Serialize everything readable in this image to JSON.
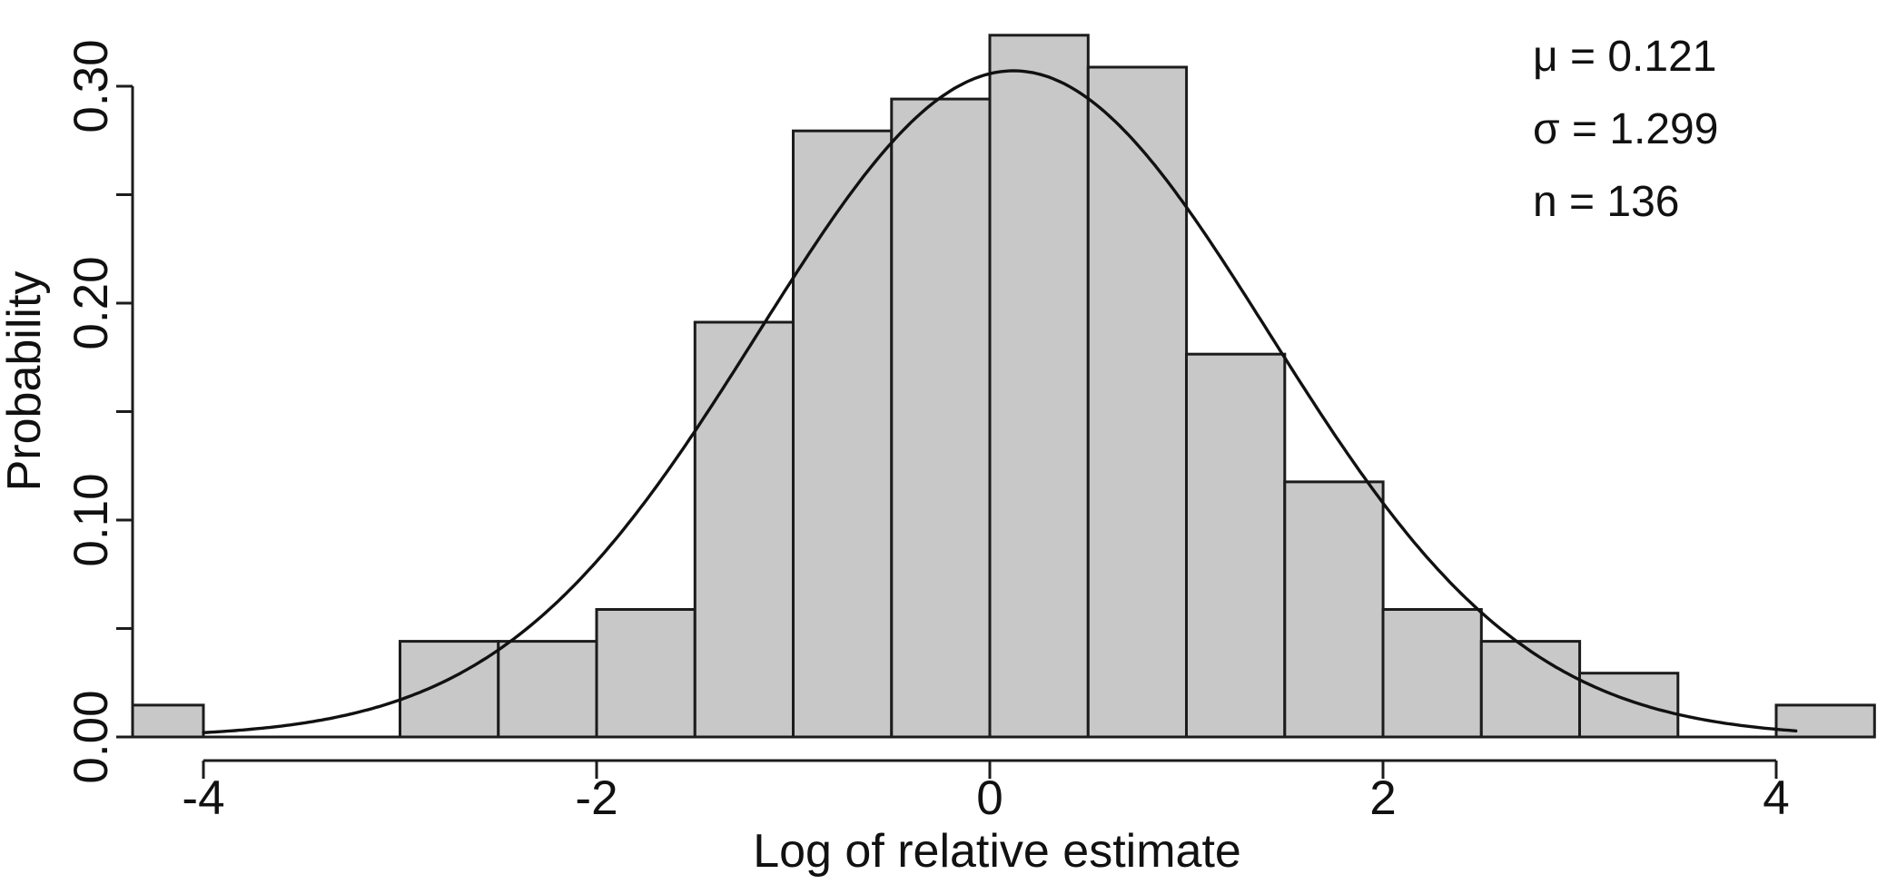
{
  "figure": {
    "stats": {
      "mu_label": "μ = 0.121",
      "sigma_label": "σ = 1.299",
      "n_label": "n = 136"
    }
  },
  "chart_data": {
    "type": "bar",
    "chart_kind": "histogram-with-normal-curve-overlay",
    "title": "",
    "xlabel": "Log of relative estimate",
    "ylabel": "Probability",
    "grid": false,
    "legend": null,
    "xlim": [
      -4.36,
      4.51
    ],
    "ylim": [
      0,
      0.325
    ],
    "bin_width": 0.5,
    "bin_edges": [
      -4.5,
      -4.0,
      -3.5,
      -3.0,
      -2.5,
      -2.0,
      -1.5,
      -1.0,
      -0.5,
      0.0,
      0.5,
      1.0,
      1.5,
      2.0,
      2.5,
      3.0,
      3.5,
      4.0,
      4.5
    ],
    "bar_counts": [
      1,
      0,
      0,
      3,
      3,
      4,
      13,
      19,
      20,
      22,
      21,
      12,
      8,
      4,
      3,
      2,
      0,
      1
    ],
    "bar_values": [
      0.0147,
      0,
      0,
      0.0441,
      0.0441,
      0.0588,
      0.1912,
      0.2794,
      0.2941,
      0.3235,
      0.3088,
      0.1765,
      0.1176,
      0.0588,
      0.0441,
      0.0294,
      0,
      0.0147
    ],
    "x_ticks": [
      {
        "value": -4,
        "label": "-4"
      },
      {
        "value": -2,
        "label": "-2"
      },
      {
        "value": 0,
        "label": "0"
      },
      {
        "value": 2,
        "label": "2"
      },
      {
        "value": 4,
        "label": "4"
      }
    ],
    "y_ticks": [
      {
        "value": 0.0,
        "label": "0.00"
      },
      {
        "value": 0.05,
        "label": ""
      },
      {
        "value": 0.1,
        "label": "0.10"
      },
      {
        "value": 0.15,
        "label": ""
      },
      {
        "value": 0.2,
        "label": "0.20"
      },
      {
        "value": 0.25,
        "label": ""
      },
      {
        "value": 0.3,
        "label": "0.30"
      }
    ],
    "normal_curve": {
      "mu": 0.121,
      "sigma": 1.299,
      "n": 136,
      "x_start": -4.0,
      "x_end": 4.1,
      "peak_density": 0.307
    },
    "annotations": [
      "μ = 0.121",
      "σ = 1.299",
      "n = 136"
    ],
    "colors": {
      "bar_fill": "#c8c8c8",
      "bar_border": "#1c1c1c",
      "curve": "#111111",
      "axis": "#1c1c1c",
      "text": "#111111",
      "background": "#ffffff"
    }
  }
}
